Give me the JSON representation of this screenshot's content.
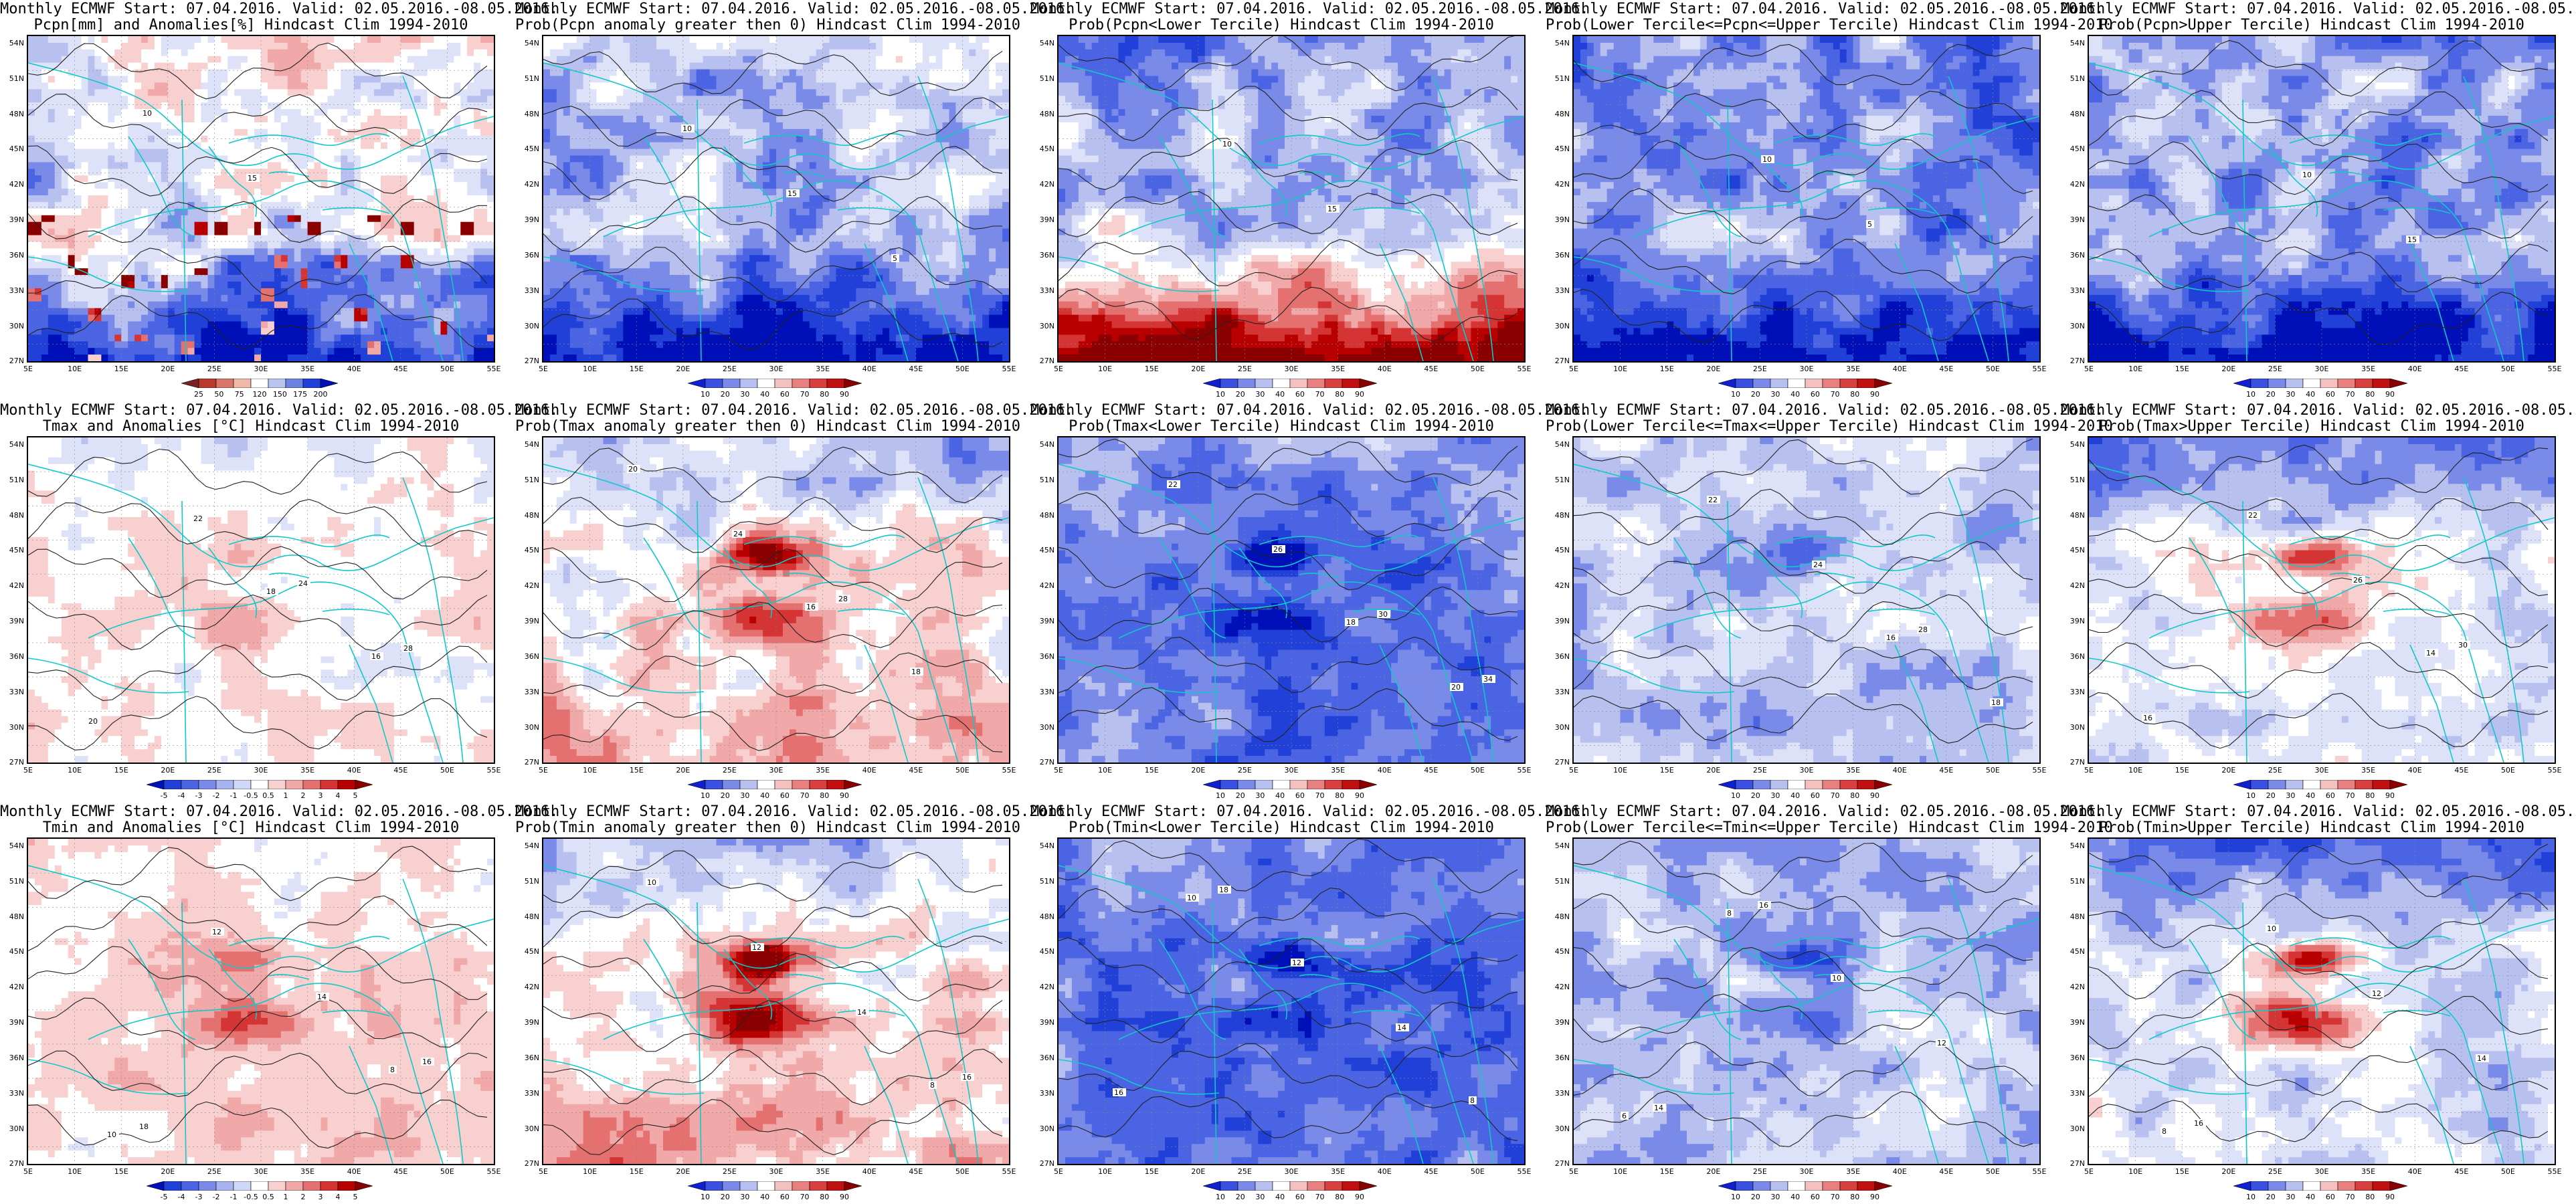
{
  "title_line1": "Monthly ECMWF Start: 07.04.2016. Valid: 02.05.2016.-08.05.2016.",
  "lat_labels": [
    "54N",
    "51N",
    "48N",
    "45N",
    "42N",
    "39N",
    "36N",
    "33N",
    "30N",
    "27N"
  ],
  "lon_labels": [
    "5E",
    "10E",
    "15E",
    "20E",
    "25E",
    "30E",
    "35E",
    "40E",
    "45E",
    "50E",
    "55E"
  ],
  "colorbar_types": {
    "pcpn": {
      "labels": [
        "25",
        "50",
        "75",
        "120",
        "150",
        "175",
        "200"
      ],
      "colors": [
        "#7b1f1f",
        "#b83a2f",
        "#d9766a",
        "#f0b8a8",
        "#ffffff",
        "#b9c4ef",
        "#6d83e0",
        "#2040d8",
        "#0010b8"
      ]
    },
    "prob": {
      "labels": [
        "10",
        "20",
        "30",
        "40",
        "60",
        "70",
        "80",
        "90"
      ],
      "colors": [
        "#1020d0",
        "#3a50e0",
        "#7a8ae8",
        "#b8c0f0",
        "#ffffff",
        "#f4c0c0",
        "#e88080",
        "#d84040",
        "#c01010",
        "#8a0000"
      ]
    },
    "anom": {
      "labels": [
        "-5",
        "-4",
        "-3",
        "-2",
        "-1",
        "-0.5",
        "0.5",
        "1",
        "2",
        "3",
        "4",
        "5"
      ],
      "colors": [
        "#0010b8",
        "#2040d8",
        "#4a64e4",
        "#7a8ae8",
        "#a8b4f0",
        "#d0d8f8",
        "#ffffff",
        "#f8d0d0",
        "#f0a8a8",
        "#e47070",
        "#d43434",
        "#b80000",
        "#8a0000"
      ]
    }
  },
  "panels": [
    {
      "id": "pcpn-anom",
      "title2": "Pcpn[mm] and Anomalies[%] Hindcast Clim 1994-2010",
      "cbar": "pcpn",
      "scheme": "pcpn",
      "contour_labels": [
        "10",
        "15"
      ]
    },
    {
      "id": "pcpn-gt0",
      "title2": "Prob(Pcpn anomaly greater then 0) Hindcast Clim 1994-2010",
      "cbar": "prob",
      "scheme": "pcpn-prob",
      "contour_labels": [
        "10",
        "15",
        "5"
      ]
    },
    {
      "id": "pcpn-lower",
      "title2": "Prob(Pcpn<Lower Tercile) Hindcast Clim 1994-2010",
      "cbar": "prob",
      "scheme": "pcpn-lower",
      "contour_labels": [
        "10",
        "15"
      ]
    },
    {
      "id": "pcpn-mid",
      "title2": "Prob(Lower Tercile<=Pcpn<=Upper Tercile) Hindcast Clim 1994-2010",
      "cbar": "prob",
      "scheme": "pcpn-mid",
      "contour_labels": [
        "10",
        "5"
      ]
    },
    {
      "id": "pcpn-upper",
      "title2": "Prob(Pcpn>Upper Tercile) Hindcast Clim 1994-2010",
      "cbar": "prob",
      "scheme": "pcpn-upper",
      "contour_labels": [
        "10",
        "15"
      ]
    },
    {
      "id": "tmax-anom",
      "title2": "Tmax and Anomalies [°C] Hindcast Clim 1994-2010",
      "cbar": "anom",
      "scheme": "tmax-anom",
      "contour_labels": [
        "18",
        "16",
        "20",
        "22",
        "24",
        "28"
      ]
    },
    {
      "id": "tmax-gt0",
      "title2": "Prob(Tmax anomaly greater then 0) Hindcast Clim 1994-2010",
      "cbar": "prob",
      "scheme": "tmax-gt0",
      "contour_labels": [
        "16",
        "18",
        "20",
        "24",
        "28"
      ]
    },
    {
      "id": "tmax-lower",
      "title2": "Prob(Tmax<Lower Tercile) Hindcast Clim 1994-2010",
      "cbar": "prob",
      "scheme": "tmax-lower",
      "contour_labels": [
        "18",
        "20",
        "22",
        "26",
        "30",
        "34"
      ]
    },
    {
      "id": "tmax-mid",
      "title2": "Prob(Lower Tercile<=Tmax<=Upper Tercile) Hindcast Clim 1994-2010",
      "cbar": "prob",
      "scheme": "tmax-mid",
      "contour_labels": [
        "16",
        "18",
        "22",
        "24",
        "28"
      ]
    },
    {
      "id": "tmax-upper",
      "title2": "Prob(Tmax>Upper Tercile) Hindcast Clim 1994-2010",
      "cbar": "prob",
      "scheme": "tmax-upper",
      "contour_labels": [
        "14",
        "16",
        "22",
        "26",
        "30"
      ]
    },
    {
      "id": "tmin-anom",
      "title2": "Tmin and Anomalies [°C] Hindcast Clim 1994-2010",
      "cbar": "anom",
      "scheme": "tmin-anom",
      "contour_labels": [
        "8",
        "10",
        "12",
        "14",
        "16",
        "18"
      ]
    },
    {
      "id": "tmin-gt0",
      "title2": "Prob(Tmin anomaly greater then 0) Hindcast Clim 1994-2010",
      "cbar": "prob",
      "scheme": "tmin-gt0",
      "contour_labels": [
        "8",
        "10",
        "12",
        "14",
        "16"
      ]
    },
    {
      "id": "tmin-lower",
      "title2": "Prob(Tmin<Lower Tercile) Hindcast Clim 1994-2010",
      "cbar": "prob",
      "scheme": "tmin-lower",
      "contour_labels": [
        "8",
        "10",
        "12",
        "14",
        "16",
        "18"
      ]
    },
    {
      "id": "tmin-mid",
      "title2": "Prob(Lower Tercile<=Tmin<=Upper Tercile) Hindcast Clim 1994-2010",
      "cbar": "prob",
      "scheme": "tmin-mid",
      "contour_labels": [
        "6",
        "8",
        "10",
        "12",
        "14",
        "16"
      ]
    },
    {
      "id": "tmin-upper",
      "title2": "Prob(Tmin>Upper Tercile) Hindcast Clim 1994-2010",
      "cbar": "prob",
      "scheme": "tmin-upper",
      "contour_labels": [
        "8",
        "10",
        "12",
        "14",
        "16"
      ]
    }
  ]
}
